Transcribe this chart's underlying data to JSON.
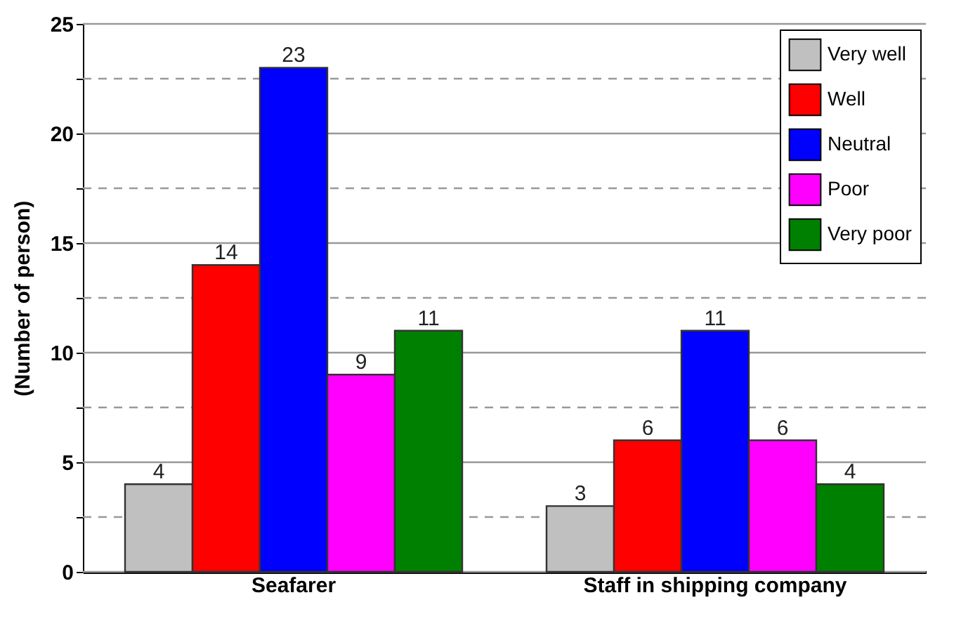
{
  "chart_data": {
    "type": "bar",
    "ylabel": "(Number of person)",
    "categories": [
      "Seafarer",
      "Staff in shipping company"
    ],
    "series": [
      {
        "name": "Very well",
        "color": "#c0c0c0",
        "values": [
          4,
          3
        ]
      },
      {
        "name": "Well",
        "color": "#ff0000",
        "values": [
          14,
          6
        ]
      },
      {
        "name": "Neutral",
        "color": "#0000ff",
        "values": [
          23,
          11
        ]
      },
      {
        "name": "Poor",
        "color": "#ff00ff",
        "values": [
          9,
          6
        ]
      },
      {
        "name": "Very poor",
        "color": "#008000",
        "values": [
          11,
          4
        ]
      }
    ],
    "ylim": [
      0,
      25
    ],
    "yticks": [
      0,
      {
        "value": 2.5,
        "label": null
      },
      5,
      {
        "value": 7.5,
        "label": null
      },
      10,
      {
        "value": 12.5,
        "label": null
      },
      15,
      {
        "value": 17.5,
        "label": null
      },
      20,
      {
        "value": 22.5,
        "label": null
      },
      25
    ],
    "grid": true,
    "legend": "top right",
    "data_labels": true
  }
}
